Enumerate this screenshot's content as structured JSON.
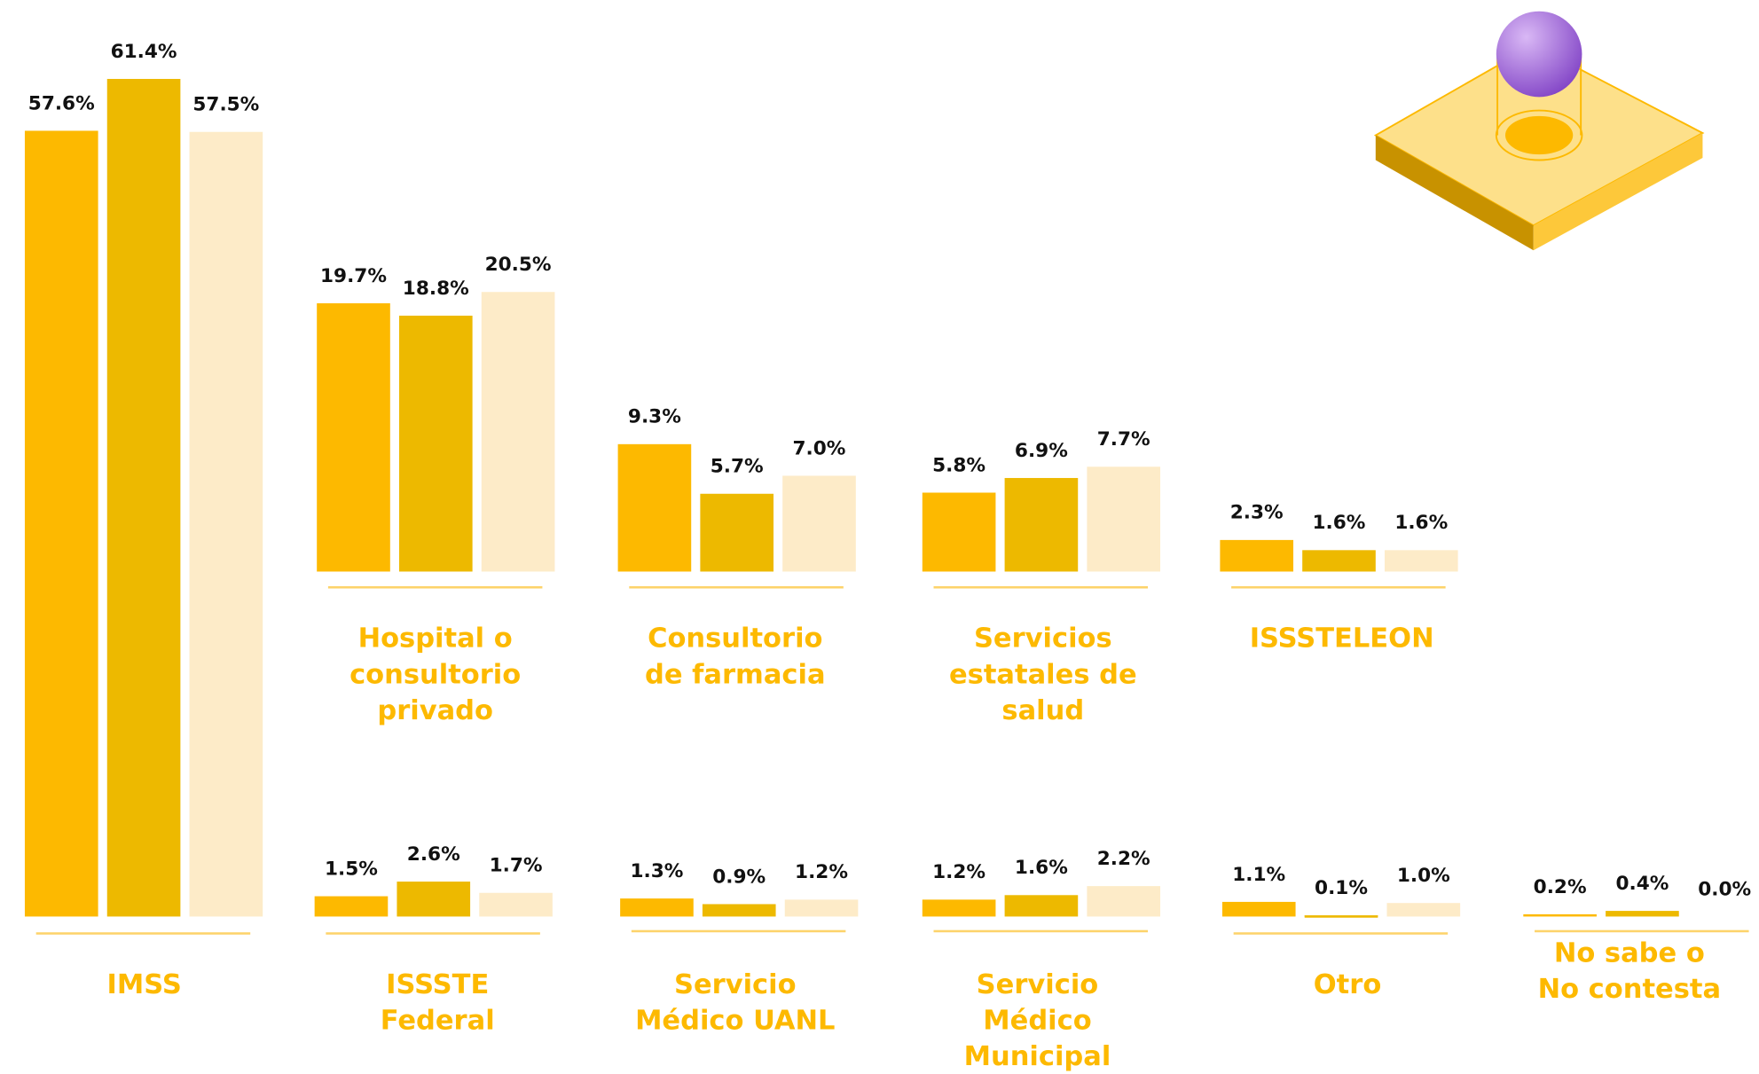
{
  "chart_data": {
    "type": "bar",
    "categories": [
      "IMSS",
      "Hospital o\nconsultorio\nprivado",
      "Consultorio\nde farmacia",
      "Servicios\nestatales de\nsalud",
      "ISSSTELEON",
      "ISSSTE\nFederal",
      "Servicio\nMédico UANL",
      "Servicio\nMédico\nMunicipal",
      "Otro",
      "No sabe o\nNo contesta"
    ],
    "series": [
      {
        "color": "#FDB900",
        "values": [
          57.6,
          19.7,
          9.3,
          5.8,
          2.3,
          1.5,
          1.3,
          1.2,
          1.1,
          0.2
        ],
        "value_labels": [
          "57.6%",
          "19.7%",
          "9.3%",
          "5.8%",
          "2.3%",
          "1.5%",
          "1.3%",
          "1.2%",
          "1.1%",
          "0.2%"
        ]
      },
      {
        "color": "#EDB900",
        "values": [
          61.4,
          18.8,
          5.7,
          6.9,
          1.6,
          2.6,
          0.9,
          1.6,
          0.1,
          0.4
        ],
        "value_labels": [
          "61.4%",
          "18.8%",
          "5.7%",
          "6.9%",
          "1.6%",
          "2.6%",
          "0.9%",
          "1.6%",
          "0.1%",
          "0.4%"
        ]
      },
      {
        "color": "#FDEBC8",
        "values": [
          57.5,
          20.5,
          7.0,
          7.7,
          1.6,
          1.7,
          1.2,
          2.2,
          1.0,
          0.0
        ],
        "value_labels": [
          "57.5%",
          "20.5%",
          "7.0%",
          "7.7%",
          "1.6%",
          "1.7%",
          "1.2%",
          "2.2%",
          "1.0%",
          "0.0%"
        ]
      }
    ]
  }
}
